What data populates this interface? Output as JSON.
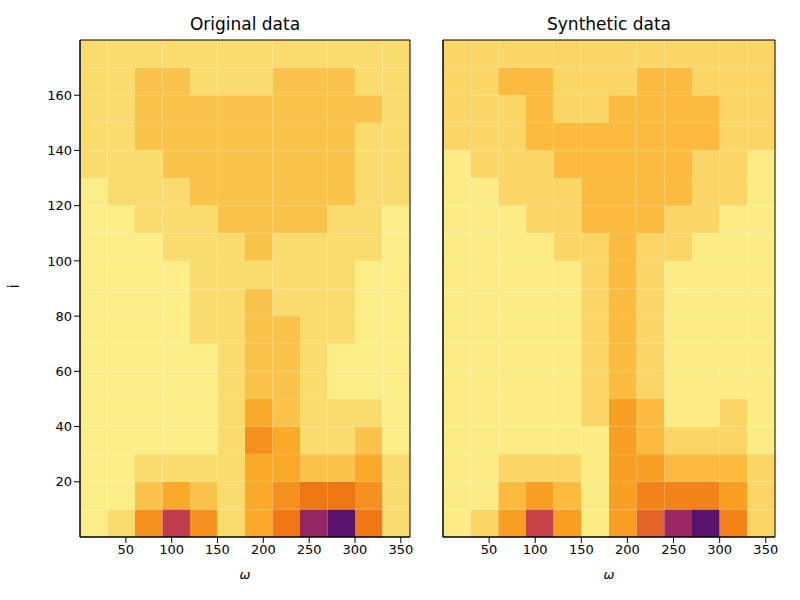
{
  "chart_data": [
    {
      "type": "heatmap",
      "title": "Original data",
      "x_label": "ω",
      "y_label": "i",
      "xlim": [
        0,
        360
      ],
      "ylim": [
        0,
        180
      ],
      "xticks": [
        50,
        100,
        150,
        200,
        250,
        300,
        350
      ],
      "yticks": [
        20,
        40,
        60,
        80,
        100,
        120,
        140,
        160
      ],
      "x_bins": [
        0,
        30,
        60,
        90,
        120,
        150,
        180,
        210,
        240,
        270,
        300,
        330,
        360
      ],
      "y_bins": [
        0,
        10,
        20,
        30,
        40,
        50,
        60,
        70,
        80,
        90,
        100,
        110,
        120,
        130,
        140,
        150,
        160,
        170,
        180
      ],
      "cells": [
        [
          1,
          2,
          5,
          8,
          5,
          2,
          4,
          6,
          9,
          10,
          6,
          2
        ],
        [
          1,
          1,
          3,
          4,
          3,
          2,
          4,
          5,
          6,
          6,
          5,
          2
        ],
        [
          1,
          1,
          2,
          2,
          2,
          2,
          4,
          4,
          3,
          3,
          4,
          2
        ],
        [
          1,
          1,
          1,
          1,
          1,
          2,
          5,
          4,
          2,
          2,
          3,
          1
        ],
        [
          1,
          1,
          1,
          1,
          1,
          2,
          4,
          3,
          2,
          2,
          2,
          1
        ],
        [
          1,
          1,
          1,
          1,
          1,
          2,
          3,
          3,
          2,
          1,
          1,
          1
        ],
        [
          1,
          1,
          1,
          1,
          1,
          2,
          3,
          3,
          2,
          1,
          1,
          1
        ],
        [
          1,
          1,
          1,
          1,
          2,
          2,
          3,
          3,
          2,
          2,
          1,
          1
        ],
        [
          1,
          1,
          1,
          1,
          2,
          2,
          3,
          2,
          2,
          2,
          1,
          1
        ],
        [
          1,
          1,
          1,
          1,
          2,
          2,
          2,
          2,
          2,
          2,
          1,
          1
        ],
        [
          1,
          1,
          1,
          2,
          2,
          2,
          3,
          2,
          2,
          2,
          2,
          1
        ],
        [
          1,
          1,
          2,
          2,
          2,
          3,
          3,
          3,
          3,
          2,
          2,
          1
        ],
        [
          1,
          2,
          2,
          2,
          3,
          3,
          3,
          3,
          3,
          3,
          2,
          2
        ],
        [
          2,
          2,
          2,
          3,
          3,
          3,
          3,
          3,
          3,
          3,
          2,
          2
        ],
        [
          2,
          2,
          3,
          3,
          3,
          3,
          3,
          3,
          3,
          3,
          2,
          2
        ],
        [
          2,
          2,
          3,
          3,
          3,
          3,
          3,
          3,
          3,
          3,
          3,
          2
        ],
        [
          2,
          2,
          3,
          3,
          2,
          2,
          2,
          3,
          3,
          3,
          2,
          2
        ],
        [
          2,
          2,
          2,
          2,
          2,
          2,
          2,
          2,
          2,
          2,
          2,
          2
        ]
      ]
    },
    {
      "type": "heatmap",
      "title": "Synthetic data",
      "x_label": "ω",
      "tick_labels": "x",
      "xlim": [
        0,
        360
      ],
      "ylim": [
        0,
        180
      ],
      "xticks": [
        50,
        100,
        150,
        200,
        250,
        300,
        350
      ],
      "yticks": [
        20,
        40,
        60,
        80,
        100,
        120,
        140,
        160
      ],
      "x_bins": [
        0,
        30,
        60,
        90,
        120,
        150,
        180,
        210,
        240,
        270,
        300,
        330,
        360
      ],
      "y_bins": [
        0,
        10,
        20,
        30,
        40,
        50,
        60,
        70,
        80,
        90,
        100,
        110,
        120,
        130,
        140,
        150,
        160,
        170,
        180
      ],
      "cells": [
        [
          1,
          2,
          4,
          7,
          4,
          1,
          4,
          6,
          8,
          9,
          5,
          2
        ],
        [
          1,
          1,
          3,
          4,
          3,
          1,
          4,
          5,
          5,
          5,
          4,
          2
        ],
        [
          1,
          1,
          2,
          2,
          2,
          1,
          4,
          4,
          3,
          3,
          3,
          2
        ],
        [
          1,
          1,
          1,
          1,
          1,
          1,
          4,
          3,
          2,
          2,
          2,
          1
        ],
        [
          1,
          1,
          1,
          1,
          1,
          2,
          4,
          3,
          1,
          1,
          2,
          1
        ],
        [
          1,
          1,
          1,
          1,
          1,
          2,
          3,
          2,
          1,
          1,
          1,
          1
        ],
        [
          1,
          1,
          1,
          1,
          1,
          2,
          3,
          2,
          1,
          1,
          1,
          1
        ],
        [
          1,
          1,
          1,
          1,
          1,
          2,
          3,
          2,
          1,
          1,
          1,
          1
        ],
        [
          1,
          1,
          1,
          1,
          1,
          2,
          3,
          2,
          1,
          1,
          1,
          1
        ],
        [
          1,
          1,
          1,
          1,
          1,
          2,
          3,
          2,
          1,
          1,
          1,
          1
        ],
        [
          1,
          1,
          1,
          1,
          2,
          2,
          3,
          2,
          2,
          1,
          1,
          1
        ],
        [
          1,
          1,
          1,
          2,
          2,
          3,
          3,
          3,
          2,
          2,
          1,
          1
        ],
        [
          1,
          1,
          2,
          2,
          2,
          3,
          3,
          3,
          3,
          2,
          2,
          1
        ],
        [
          1,
          2,
          2,
          2,
          3,
          3,
          3,
          3,
          3,
          2,
          2,
          1
        ],
        [
          2,
          2,
          2,
          3,
          3,
          3,
          3,
          3,
          3,
          3,
          2,
          2
        ],
        [
          2,
          2,
          2,
          3,
          2,
          2,
          3,
          3,
          3,
          3,
          2,
          2
        ],
        [
          2,
          2,
          3,
          3,
          2,
          2,
          2,
          3,
          3,
          2,
          2,
          2
        ],
        [
          2,
          2,
          2,
          2,
          2,
          2,
          2,
          2,
          2,
          2,
          2,
          2
        ]
      ]
    }
  ]
}
